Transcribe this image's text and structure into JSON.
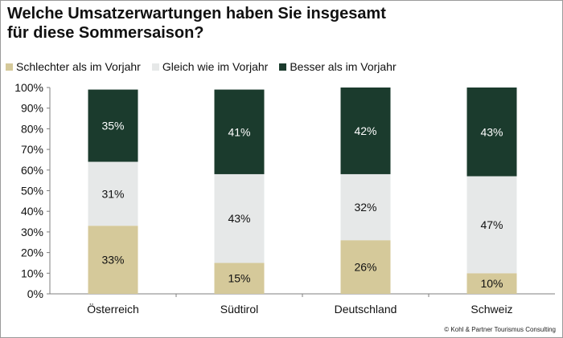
{
  "title_line1": "Welche Umsatzerwartungen haben Sie insgesamt",
  "title_line2": "für diese Sommersaison?",
  "source": "© Kohl & Partner Tourismus Consulting",
  "chart_data": {
    "type": "bar",
    "stacked": true,
    "categories": [
      "Österreich",
      "Südtirol",
      "Deutschland",
      "Schweiz"
    ],
    "series": [
      {
        "name": "Schlechter als im Vorjahr",
        "color": "#d5c99a",
        "label_color": "#111111",
        "values": [
          33,
          15,
          26,
          10
        ],
        "labels": [
          "33%",
          "15%",
          "26%",
          "10%"
        ]
      },
      {
        "name": "Gleich wie im Vorjahr",
        "color": "#e6e8e8",
        "label_color": "#111111",
        "values": [
          31,
          43,
          32,
          47
        ],
        "labels": [
          "31%",
          "43%",
          "32%",
          "47%"
        ]
      },
      {
        "name": "Besser als im Vorjahr",
        "color": "#1b3b2d",
        "label_color": "#ffffff",
        "values": [
          35,
          41,
          42,
          43
        ],
        "labels": [
          "35%",
          "41%",
          "42%",
          "43%"
        ]
      }
    ],
    "ylim": [
      0,
      100
    ],
    "yticks": [
      0,
      10,
      20,
      30,
      40,
      50,
      60,
      70,
      80,
      90,
      100
    ],
    "ytick_labels": [
      "0%",
      "10%",
      "20%",
      "30%",
      "40%",
      "50%",
      "60%",
      "70%",
      "80%",
      "90%",
      "100%"
    ],
    "legend_position": "top-left",
    "grid": false
  }
}
